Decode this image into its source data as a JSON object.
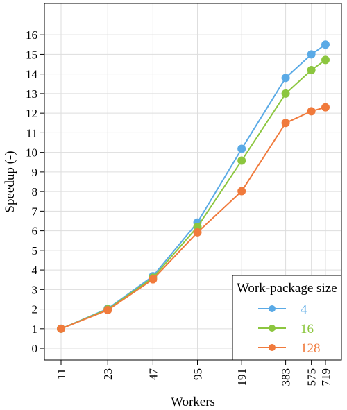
{
  "chart_data": {
    "type": "line",
    "xlabel": "Workers",
    "ylabel": "Speedup (-)",
    "x": [
      "11",
      "23",
      "47",
      "95",
      "191",
      "383",
      "575",
      "719"
    ],
    "ylim": [
      -0.6,
      17.6
    ],
    "yticks": [
      "0",
      "1",
      "2",
      "3",
      "4",
      "5",
      "6",
      "7",
      "8",
      "9",
      "10",
      "11",
      "12",
      "13",
      "14",
      "15",
      "16"
    ],
    "grid": true,
    "legend": {
      "title": "Work-package size",
      "placement": "bottom-right",
      "labels": [
        "4",
        "16",
        "128"
      ]
    },
    "series": [
      {
        "name": "4",
        "color": "#5aaae6",
        "values": [
          1.0,
          2.02,
          3.68,
          6.42,
          10.18,
          13.8,
          15.0,
          15.5
        ]
      },
      {
        "name": "16",
        "color": "#8cc63f",
        "values": [
          1.0,
          1.99,
          3.6,
          6.2,
          9.58,
          13.0,
          14.2,
          14.72
        ]
      },
      {
        "name": "128",
        "color": "#f07a3c",
        "values": [
          1.0,
          1.95,
          3.52,
          5.92,
          8.02,
          11.5,
          12.1,
          12.3
        ]
      }
    ]
  }
}
